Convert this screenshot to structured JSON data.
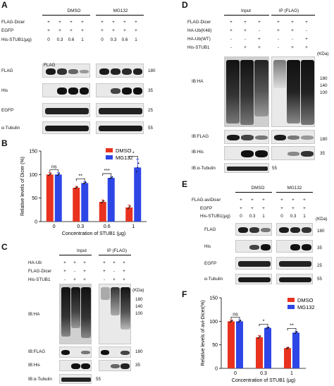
{
  "panels": {
    "A": {
      "letter": "A",
      "groups": [
        "DMSO",
        "MG132"
      ],
      "rows": [
        "FLAG-Dicer",
        "EGFP",
        "His-STUB1(μg)"
      ],
      "row_marks": [
        [
          "+",
          "+",
          "+",
          "+",
          "+",
          "+",
          "+",
          "+"
        ],
        [
          "+",
          "+",
          "+",
          "+",
          "+",
          "+",
          "+",
          "+"
        ],
        [
          "0",
          "0.3",
          "0.6",
          "1",
          "0",
          "0.3",
          "0.6",
          "1"
        ]
      ],
      "blots": [
        "FLAG",
        "His",
        "EGFP",
        "α-Tubulin"
      ],
      "mw": [
        "180",
        "35",
        "25",
        "55"
      ]
    },
    "B": {
      "letter": "B"
    },
    "C": {
      "letter": "C",
      "groups": [
        "Input",
        "IP (FLAG)"
      ],
      "rows": [
        "HA-Ub",
        "FLAG-Dicer",
        "His-STUB1"
      ],
      "row_marks": [
        [
          "+",
          "+",
          "+",
          "+",
          "+",
          "+"
        ],
        [
          "+",
          "-",
          "+",
          "+",
          "-",
          "+"
        ],
        [
          "-",
          "+",
          "+",
          "-",
          "+",
          "+"
        ]
      ],
      "kda": "(KDa)",
      "blots": [
        "IB:HA",
        "IB:FLAG",
        "IB:His",
        "IB:α-Tubulin"
      ],
      "mw_ha": [
        "180",
        "140",
        "100"
      ],
      "mw": [
        "180",
        "35",
        "55"
      ]
    },
    "D": {
      "letter": "D",
      "groups": [
        "Input",
        "IP (FLAG)"
      ],
      "rows": [
        "FLAG-Dicer",
        "HA-Ub(K48)",
        "HA-Ub(WT)",
        "His-STUB1"
      ],
      "row_marks": [
        [
          "+",
          "+",
          "+",
          "+",
          "+",
          "+"
        ],
        [
          "+",
          "+",
          "-",
          "+",
          "+",
          "-"
        ],
        [
          "-",
          "-",
          "+",
          "-",
          "-",
          "+"
        ],
        [
          "-",
          "+",
          "+",
          "-",
          "+",
          "+"
        ]
      ],
      "kda": "(KDa)",
      "blots": [
        "IB:HA",
        "IB:FLAG",
        "IB:His",
        "IB:α-Tubulin"
      ],
      "mw_ha": [
        "180",
        "140",
        "100"
      ],
      "mw": [
        "180",
        "35",
        "55"
      ]
    },
    "E": {
      "letter": "E",
      "groups": [
        "DMSO",
        "MG132"
      ],
      "rows": [
        "FLAG-aviDicer",
        "EGFP",
        "His-STUB1(μg)"
      ],
      "row_marks": [
        [
          "+",
          "+",
          "+",
          "+",
          "+",
          "+"
        ],
        [
          "+",
          "+",
          "+",
          "+",
          "+",
          "+"
        ],
        [
          "0",
          "0.3",
          "1",
          "0",
          "0.3",
          "1"
        ]
      ],
      "kda": "(KDa)",
      "blots": [
        "FLAG",
        "His",
        "EGFP",
        "α-Tubulin"
      ],
      "mw": [
        "180",
        "35",
        "25",
        "55"
      ]
    },
    "F": {
      "letter": "F"
    }
  },
  "chart_data": [
    {
      "type": "bar",
      "panel": "B",
      "categories": [
        "0",
        "0.3",
        "0.6",
        "1"
      ],
      "series": [
        {
          "name": "DMSO",
          "color": "#e8321f",
          "values": [
            100,
            72,
            42,
            30
          ],
          "errors": [
            4,
            3,
            4,
            5
          ]
        },
        {
          "name": "MG132",
          "color": "#2e46e6",
          "values": [
            100,
            82,
            93,
            115
          ],
          "errors": [
            4,
            3,
            3,
            18
          ]
        }
      ],
      "significance": [
        "ns",
        "**",
        "***",
        "*"
      ],
      "ylabel": "Relative levels of Dicer (%)",
      "xlabel": "Concentration of STUB1 (μg)",
      "ylim": [
        0,
        150
      ],
      "yticks": [
        "0",
        "50",
        "100",
        "150"
      ]
    },
    {
      "type": "bar",
      "panel": "F",
      "categories": [
        "0",
        "0.3",
        "1"
      ],
      "series": [
        {
          "name": "DMSO",
          "color": "#e8321f",
          "values": [
            100,
            66,
            43
          ],
          "errors": [
            3,
            4,
            2
          ]
        },
        {
          "name": "MG132",
          "color": "#2e46e6",
          "values": [
            100,
            86,
            76
          ],
          "errors": [
            3,
            2,
            3
          ]
        }
      ],
      "significance": [
        "ns",
        "*",
        "**"
      ],
      "ylabel": "Relative levels of avi-Dicer(%)",
      "xlabel": "Concentration of STUB1 (μg)",
      "ylim": [
        0,
        150
      ],
      "yticks": [
        "0",
        "50",
        "100",
        "150"
      ]
    }
  ]
}
